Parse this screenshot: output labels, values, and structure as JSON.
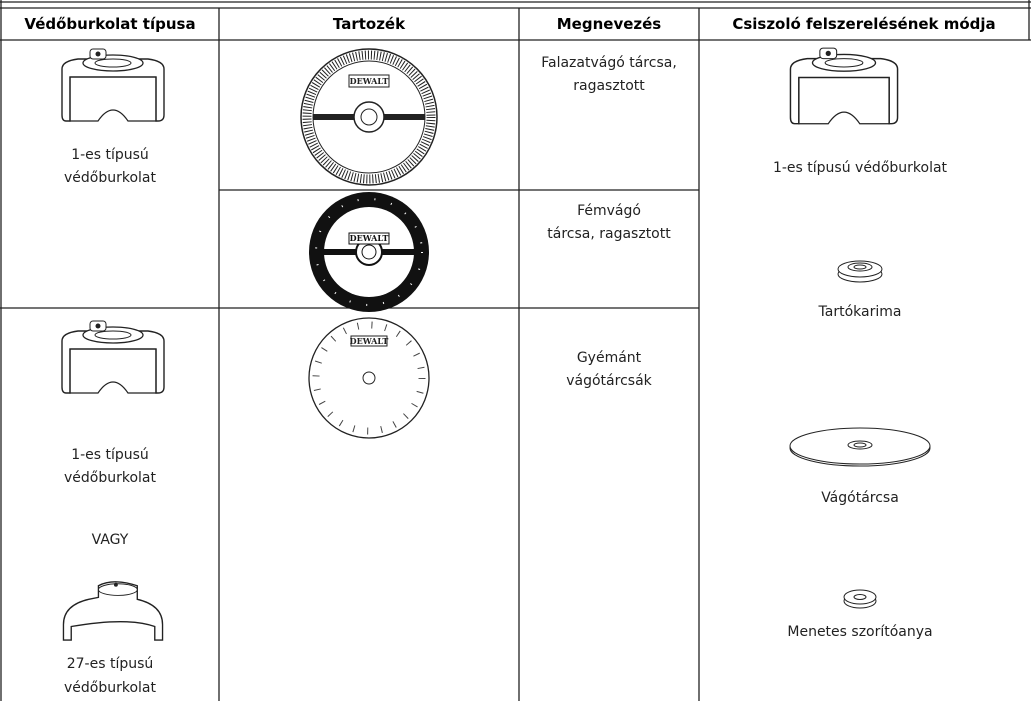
{
  "header": [
    "Védőburkolat típusa",
    "Tartozék",
    "Megnevezés",
    "Csiszoló felszerelésének módja"
  ],
  "guard_type": {
    "top": [
      "1-es típusú",
      "védőburkolat"
    ],
    "bottom": [
      "1-es típusú",
      "védőburkolat"
    ],
    "or": "VAGY",
    "alt": [
      "27-es típusú",
      "védőburkolat"
    ]
  },
  "accessories": {
    "logo": "DEWALT"
  },
  "names": [
    [
      "Falazatvágó tárcsa,",
      "ragasztott"
    ],
    [
      "Fémvágó",
      "tárcsa, ragasztott"
    ],
    [
      "Gyémánt",
      "vágótárcsák"
    ]
  ],
  "mounting": [
    "1-es típusú védőburkolat",
    "Tartókarima",
    "Vágótárcsa",
    "Menetes szorítóanya"
  ]
}
